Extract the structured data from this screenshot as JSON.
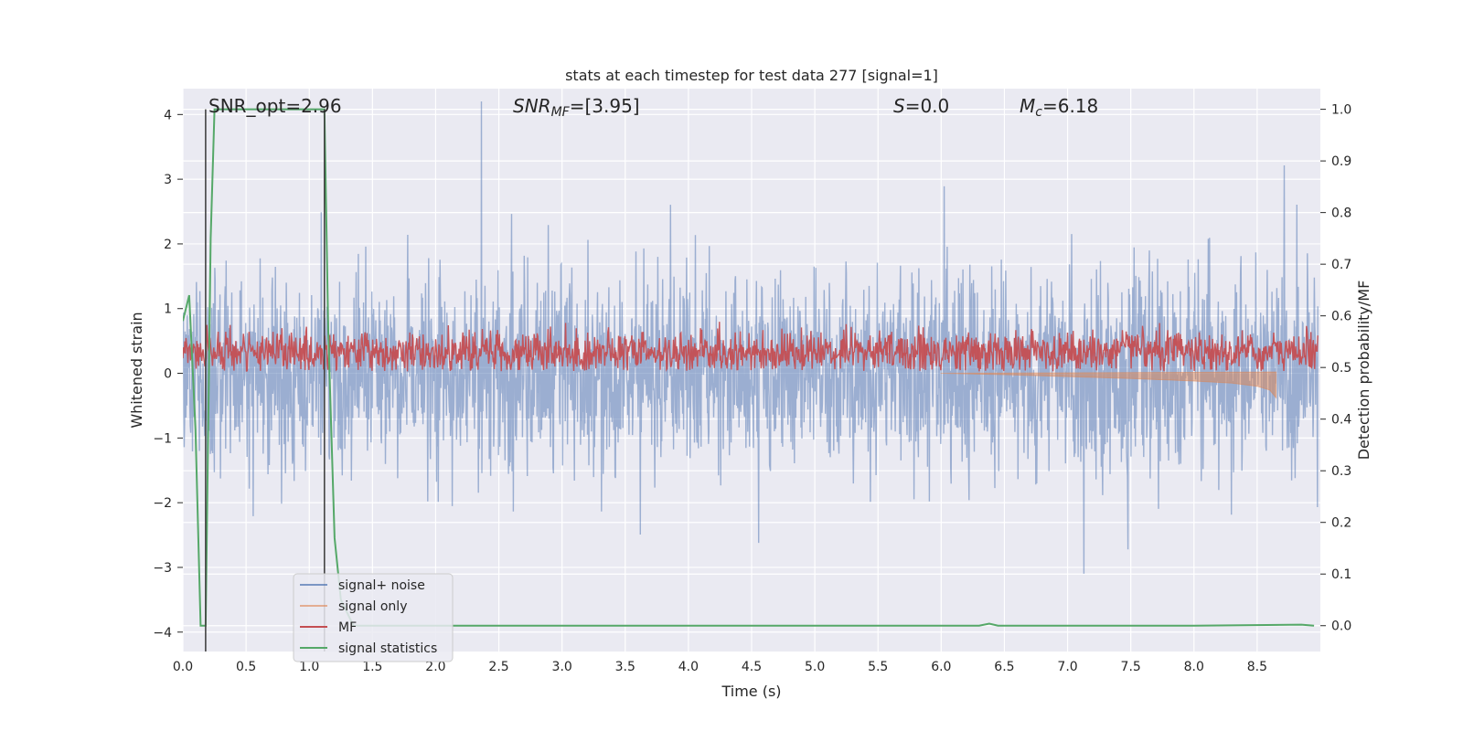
{
  "chart_data": {
    "type": "line",
    "title": "stats at each timestep for test data 277 [signal=1]",
    "xlabel": "Time (s)",
    "ylabel": "Whitened strain",
    "ylabel_right": "Detection probability/MF",
    "xlim": [
      0.0,
      9.0
    ],
    "ylim": [
      -4.3,
      4.4
    ],
    "ylim_right": [
      -0.05,
      1.04
    ],
    "x_ticks": [
      "0.0",
      "0.5",
      "1.0",
      "1.5",
      "2.0",
      "2.5",
      "3.0",
      "3.5",
      "4.0",
      "4.5",
      "5.0",
      "5.5",
      "6.0",
      "6.5",
      "7.0",
      "7.5",
      "8.0",
      "8.5"
    ],
    "y_ticks": [
      "4",
      "3",
      "2",
      "1",
      "0",
      "−1",
      "−2",
      "−3",
      "−4"
    ],
    "y_ticks_right": [
      "1.0",
      "0.9",
      "0.8",
      "0.7",
      "0.6",
      "0.5",
      "0.4",
      "0.3",
      "0.2",
      "0.1",
      "0.0"
    ],
    "grid": true,
    "legend_position": "lower-left",
    "annotations": {
      "snr_opt": "SNR_opt=2.96",
      "snr_mf_main": "SNR",
      "snr_mf_sub": "MF",
      "snr_mf_rest": "=[3.95]",
      "s_main": "S",
      "s_rest": "=0.0",
      "mc_main": "M",
      "mc_sub": "c",
      "mc_rest": "=6.18"
    },
    "vlines_x": [
      0.18,
      1.12
    ],
    "series": [
      {
        "name": "signal+ noise",
        "color": "#4c72b0",
        "kind": "noise",
        "alpha": 0.5,
        "std": 0.75,
        "mean": 0.0
      },
      {
        "name": "signal only",
        "color": "#dd8452",
        "kind": "chirp",
        "alpha": 0.5,
        "x": [
          6.0,
          6.5,
          7.0,
          7.5,
          8.0,
          8.3,
          8.5,
          8.6,
          8.65
        ],
        "lower": [
          0.0,
          -0.02,
          -0.05,
          -0.08,
          -0.12,
          -0.15,
          -0.2,
          -0.26,
          -0.38
        ]
      },
      {
        "name": "MF",
        "color": "#c44e52",
        "kind": "mf",
        "alpha": 0.95,
        "mean": 0.33,
        "std": 0.16
      },
      {
        "name": "signal statistics",
        "color": "#55a868",
        "kind": "line",
        "alpha": 1.0,
        "x": [
          0.0,
          0.05,
          0.1,
          0.14,
          0.18,
          0.22,
          0.25,
          1.12,
          1.15,
          1.2,
          1.25,
          1.35,
          1.5,
          2.0,
          3.0,
          4.0,
          5.0,
          6.0,
          6.3,
          6.38,
          6.45,
          6.6,
          7.0,
          8.0,
          8.85,
          8.95
        ],
        "y": [
          0.59,
          0.64,
          0.38,
          0.0,
          0.0,
          0.75,
          1.0,
          1.0,
          0.57,
          0.17,
          0.05,
          0.0,
          0.0,
          0.0,
          0.0,
          0.0,
          0.0,
          0.0,
          0.0,
          0.004,
          0.0,
          0.0,
          0.0,
          0.0,
          0.002,
          0.0
        ]
      }
    ]
  }
}
